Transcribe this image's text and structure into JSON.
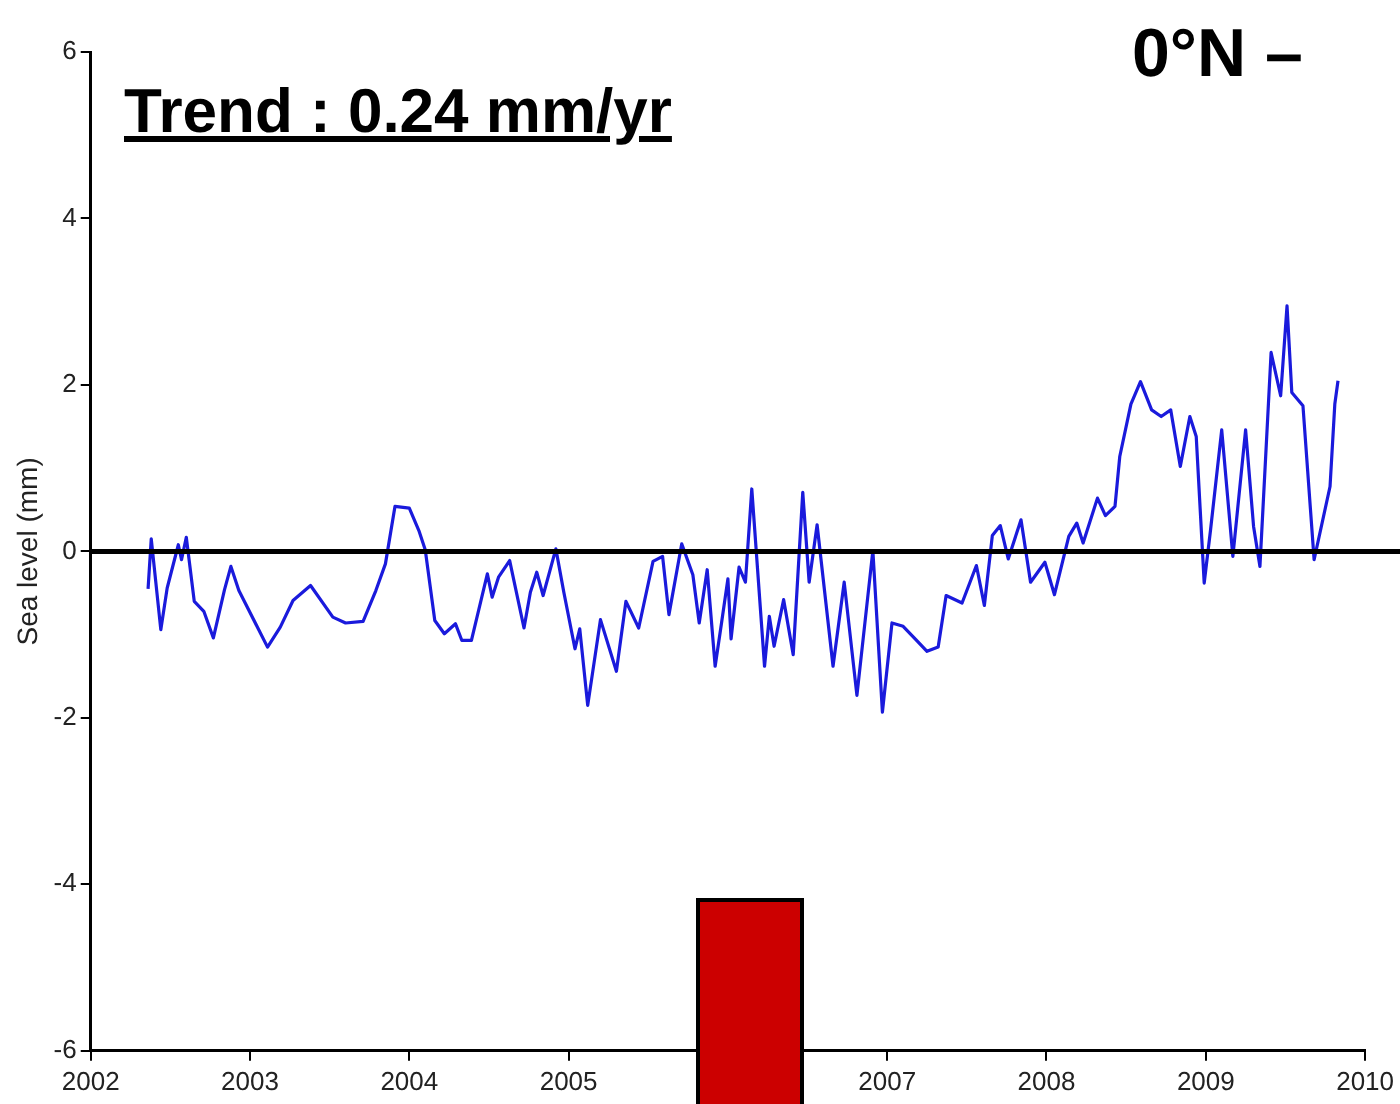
{
  "chart_data": {
    "type": "line",
    "ylabel": "Sea level (mm)",
    "annotations": [
      "Trend : 0.24 mm/yr",
      "0°N –"
    ],
    "xlim": [
      2002,
      2010
    ],
    "xticks": [
      2002,
      2003,
      2004,
      2005,
      {
        "value": 2006,
        "label": null
      },
      2007,
      2008,
      2009,
      2010
    ],
    "ylim": [
      -6,
      6
    ],
    "yticks": [
      -6,
      -4,
      -2,
      0,
      2,
      4,
      6
    ],
    "grid": false,
    "legend": false,
    "marker": "none",
    "line_style": "solid",
    "ref_lines": [
      {
        "axis": "y",
        "value": 0,
        "color": "#000000"
      }
    ],
    "series": [
      {
        "color": "#1a1adc",
        "x": [
          2002.36,
          2002.38,
          2002.44,
          2002.48,
          2002.55,
          2002.57,
          2002.6,
          2002.65,
          2002.71,
          2002.77,
          2002.84,
          2002.88,
          2002.93,
          2003.11,
          2003.19,
          2003.27,
          2003.38,
          2003.52,
          2003.6,
          2003.71,
          2003.79,
          2003.85,
          2003.91,
          2004.0,
          2004.06,
          2004.1,
          2004.16,
          2004.22,
          2004.29,
          2004.33,
          2004.39,
          2004.49,
          2004.52,
          2004.56,
          2004.63,
          2004.72,
          2004.76,
          2004.8,
          2004.84,
          2004.92,
          2004.97,
          2005.04,
          2005.07,
          2005.12,
          2005.2,
          2005.3,
          2005.36,
          2005.44,
          2005.53,
          2005.59,
          2005.63,
          2005.71,
          2005.78,
          2005.82,
          2005.87,
          2005.92,
          2005.96,
          2006.0,
          2006.02,
          2006.07,
          2006.11,
          2006.15,
          2006.23,
          2006.26,
          2006.29,
          2006.35,
          2006.41,
          2006.47,
          2006.51,
          2006.56,
          2006.66,
          2006.73,
          2006.81,
          2006.91,
          2006.97,
          2007.03,
          2007.1,
          2007.18,
          2007.25,
          2007.32,
          2007.37,
          2007.47,
          2007.56,
          2007.61,
          2007.66,
          2007.71,
          2007.76,
          2007.84,
          2007.9,
          2007.99,
          2008.05,
          2008.14,
          2008.19,
          2008.23,
          2008.32,
          2008.37,
          2008.43,
          2008.46,
          2008.53,
          2008.59,
          2008.66,
          2008.72,
          2008.78,
          2008.84,
          2008.9,
          2008.94,
          2008.99,
          2009.03,
          2009.1,
          2009.17,
          2009.25,
          2009.3,
          2009.34,
          2009.41,
          2009.47,
          2009.51,
          2009.54,
          2009.61,
          2009.68,
          2009.78,
          2009.81,
          2009.83
        ],
        "values": [
          -0.45,
          0.15,
          -0.94,
          -0.44,
          0.08,
          -0.1,
          0.17,
          -0.6,
          -0.72,
          -1.04,
          -0.46,
          -0.18,
          -0.47,
          -1.15,
          -0.91,
          -0.59,
          -0.41,
          -0.79,
          -0.86,
          -0.84,
          -0.47,
          -0.15,
          0.54,
          0.52,
          0.25,
          0.02,
          -0.83,
          -0.99,
          -0.87,
          -1.07,
          -1.07,
          -0.27,
          -0.55,
          -0.31,
          -0.11,
          -0.92,
          -0.49,
          -0.25,
          -0.53,
          0.03,
          -0.49,
          -1.17,
          -0.93,
          -1.85,
          -0.82,
          -1.44,
          -0.6,
          -0.92,
          -0.12,
          -0.06,
          -0.76,
          0.09,
          -0.28,
          -0.86,
          -0.22,
          -1.38,
          -0.86,
          -0.33,
          -1.05,
          -0.19,
          -0.37,
          0.75,
          -1.38,
          -0.78,
          -1.14,
          -0.58,
          -1.24,
          0.71,
          -0.37,
          0.32,
          -1.38,
          -0.37,
          -1.73,
          0.01,
          -1.93,
          -0.86,
          -0.9,
          -1.06,
          -1.2,
          -1.15,
          -0.53,
          -0.62,
          -0.17,
          -0.65,
          0.19,
          0.31,
          -0.09,
          0.38,
          -0.37,
          -0.13,
          -0.52,
          0.18,
          0.34,
          0.1,
          0.64,
          0.43,
          0.54,
          1.14,
          1.77,
          2.04,
          1.7,
          1.62,
          1.7,
          1.02,
          1.62,
          1.38,
          -0.38,
          0.26,
          1.46,
          -0.06,
          1.46,
          0.3,
          -0.18,
          2.39,
          1.87,
          2.95,
          1.91,
          1.75,
          -0.1,
          0.78,
          1.77,
          2.05
        ]
      }
    ]
  }
}
